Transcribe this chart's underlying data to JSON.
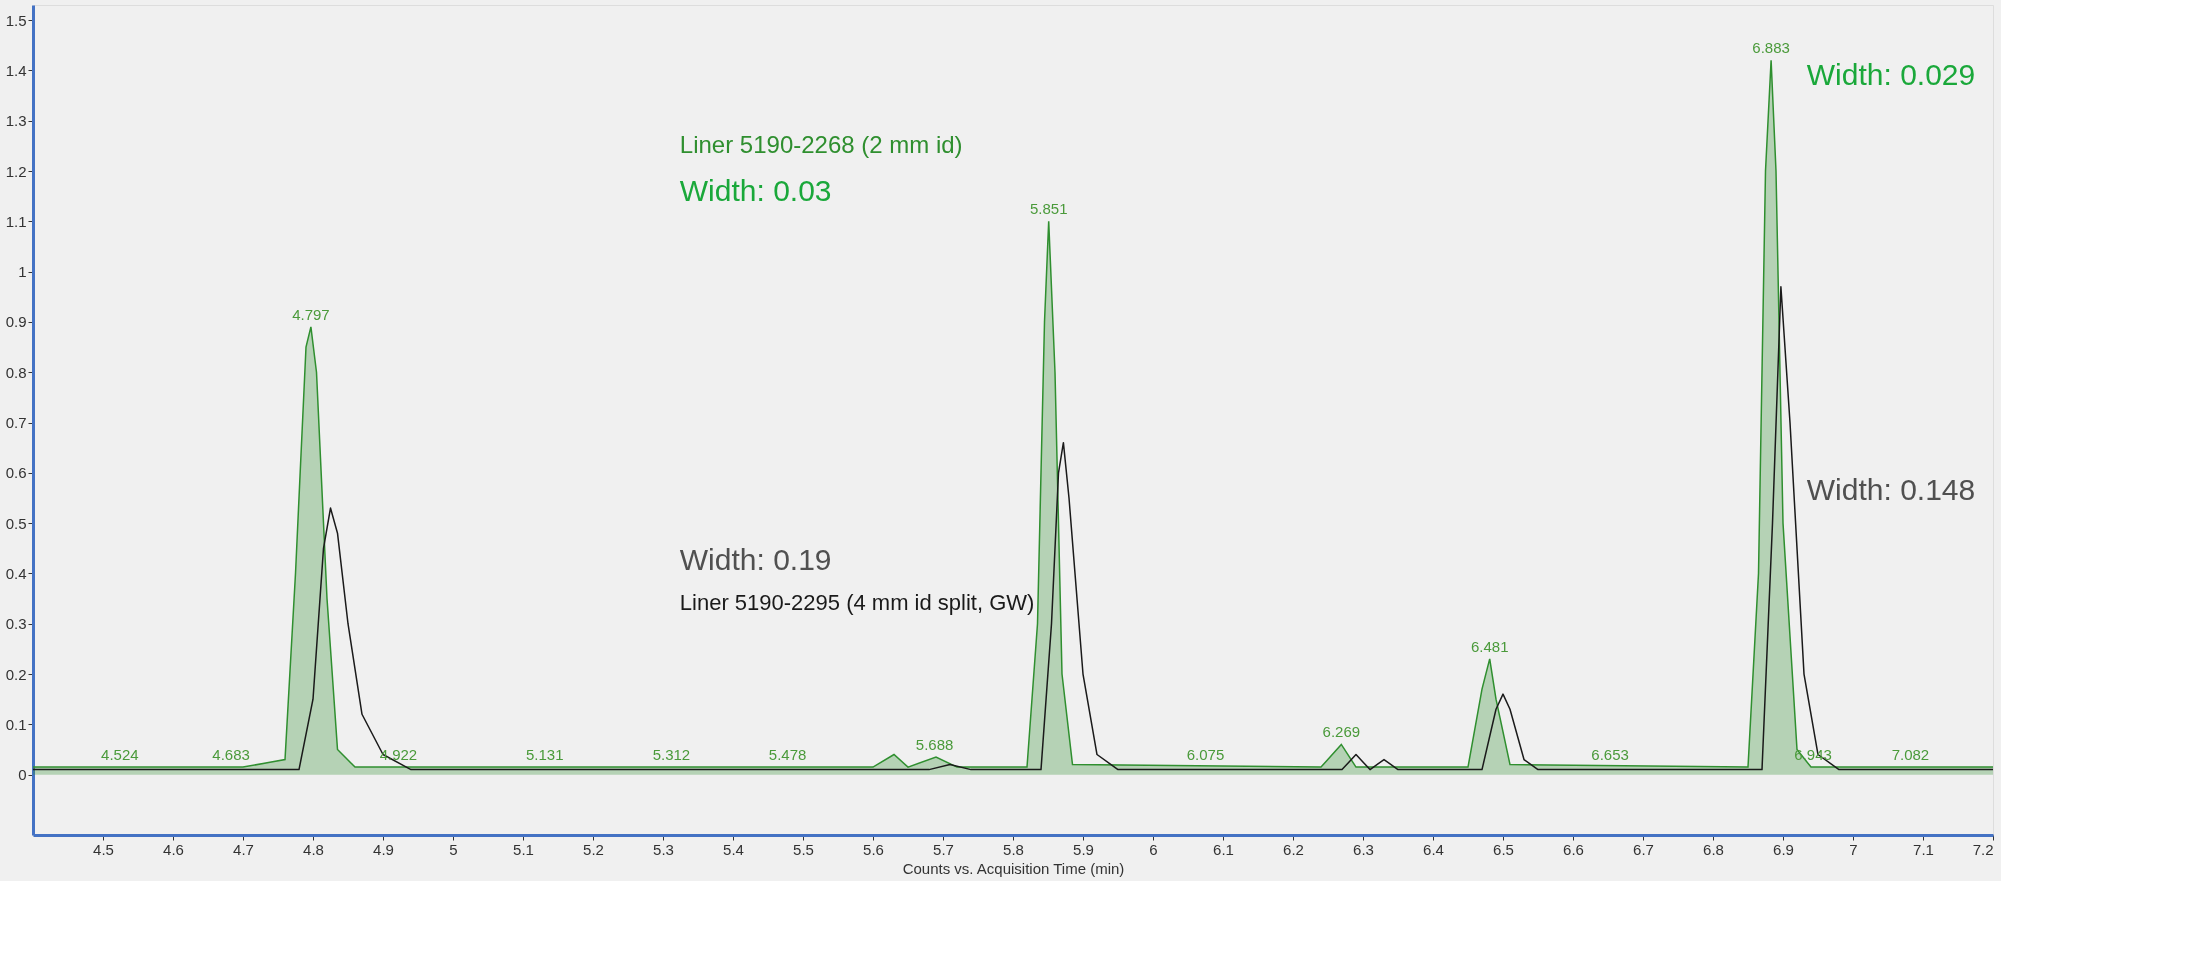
{
  "chart_data": {
    "type": "area",
    "xlabel": "Counts vs. Acquisition Time (min)",
    "xlim": [
      4.4,
      7.2
    ],
    "xticks": [
      4.5,
      4.6,
      4.7,
      4.8,
      4.9,
      5,
      5.1,
      5.2,
      5.3,
      5.4,
      5.5,
      5.6,
      5.7,
      5.8,
      5.9,
      6,
      6.1,
      6.2,
      6.3,
      6.4,
      6.5,
      6.6,
      6.7,
      6.8,
      6.9,
      7,
      7.1,
      7.2
    ],
    "ylim": [
      -0.12,
      1.53
    ],
    "yticks": [
      0,
      0.1,
      0.2,
      0.3,
      0.4,
      0.5,
      0.6,
      0.7,
      0.8,
      0.9,
      1,
      1.1,
      1.2,
      1.3,
      1.4,
      1.5
    ],
    "grid": false,
    "series": [
      {
        "name": "Liner 5190-2268 (2 mm id)",
        "color": "#2f8f2f",
        "x": [
          4.4,
          4.7,
          4.76,
          4.775,
          4.79,
          4.797,
          4.805,
          4.82,
          4.835,
          4.86,
          5.6,
          5.63,
          5.65,
          5.69,
          5.72,
          5.82,
          5.835,
          5.845,
          5.851,
          5.86,
          5.87,
          5.885,
          6.24,
          6.269,
          6.29,
          6.45,
          6.47,
          6.481,
          6.49,
          6.51,
          6.85,
          6.865,
          6.875,
          6.883,
          6.89,
          6.9,
          6.92,
          6.94,
          7.2
        ],
        "values": [
          0.015,
          0.015,
          0.03,
          0.4,
          0.85,
          0.89,
          0.8,
          0.35,
          0.05,
          0.015,
          0.015,
          0.04,
          0.015,
          0.035,
          0.015,
          0.015,
          0.3,
          0.9,
          1.1,
          0.8,
          0.2,
          0.02,
          0.015,
          0.06,
          0.015,
          0.015,
          0.17,
          0.23,
          0.15,
          0.02,
          0.015,
          0.4,
          1.2,
          1.42,
          1.2,
          0.5,
          0.05,
          0.015,
          0.015
        ]
      },
      {
        "name": "Liner 5190-2295 (4 mm id split, GW)",
        "type": "line",
        "color": "#1a1a1a",
        "x": [
          4.4,
          4.78,
          4.8,
          4.815,
          4.825,
          4.835,
          4.85,
          4.87,
          4.9,
          4.94,
          5.68,
          5.71,
          5.74,
          5.84,
          5.855,
          5.865,
          5.872,
          5.88,
          5.9,
          5.92,
          5.95,
          6.27,
          6.29,
          6.31,
          6.33,
          6.35,
          6.47,
          6.49,
          6.5,
          6.51,
          6.53,
          6.55,
          6.87,
          6.885,
          6.897,
          6.91,
          6.93,
          6.95,
          6.98,
          7.2
        ],
        "values": [
          0.01,
          0.01,
          0.15,
          0.45,
          0.53,
          0.48,
          0.3,
          0.12,
          0.04,
          0.01,
          0.01,
          0.02,
          0.01,
          0.01,
          0.3,
          0.6,
          0.66,
          0.55,
          0.2,
          0.04,
          0.01,
          0.01,
          0.04,
          0.01,
          0.03,
          0.01,
          0.01,
          0.13,
          0.16,
          0.13,
          0.03,
          0.01,
          0.01,
          0.5,
          0.97,
          0.7,
          0.2,
          0.04,
          0.01,
          0.01
        ]
      }
    ],
    "annotations": [
      {
        "text": "4.524",
        "x": 4.524,
        "y": 0.015
      },
      {
        "text": "4.683",
        "x": 4.683,
        "y": 0.015
      },
      {
        "text": "4.797",
        "x": 4.797,
        "y": 0.89
      },
      {
        "text": "4.922",
        "x": 4.922,
        "y": 0.015
      },
      {
        "text": "5.131",
        "x": 5.131,
        "y": 0.015
      },
      {
        "text": "5.312",
        "x": 5.312,
        "y": 0.015
      },
      {
        "text": "5.478",
        "x": 5.478,
        "y": 0.015
      },
      {
        "text": "5.688",
        "x": 5.688,
        "y": 0.035
      },
      {
        "text": "5.851",
        "x": 5.851,
        "y": 1.1
      },
      {
        "text": "6.075",
        "x": 6.075,
        "y": 0.015
      },
      {
        "text": "6.269",
        "x": 6.269,
        "y": 0.06
      },
      {
        "text": "6.481",
        "x": 6.481,
        "y": 0.23
      },
      {
        "text": "6.653",
        "x": 6.653,
        "y": 0.015
      },
      {
        "text": "6.883",
        "x": 6.883,
        "y": 1.42
      },
      {
        "text": "6.943",
        "x": 6.943,
        "y": 0.015
      },
      {
        "text": "7.082",
        "x": 7.082,
        "y": 0.015
      },
      "Width: 0.03",
      "Width: 0.19",
      "Width: 0.029",
      "Width: 0.148"
    ]
  }
}
